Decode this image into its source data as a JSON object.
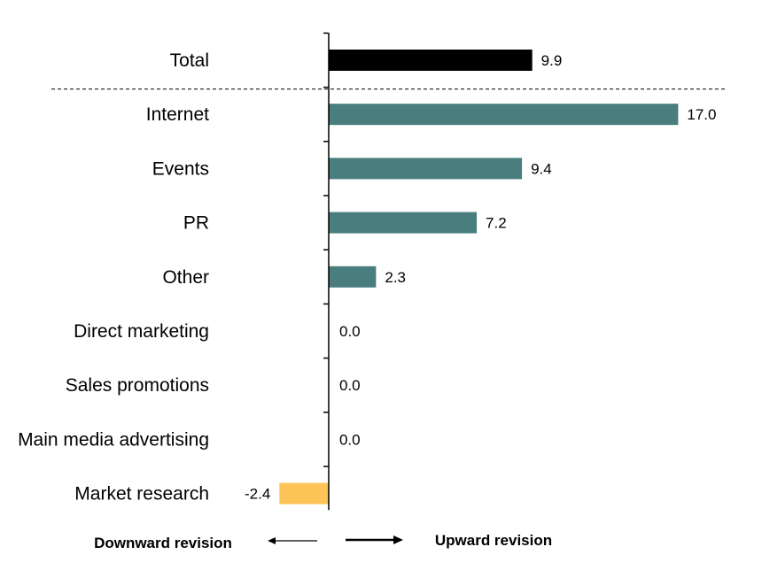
{
  "chart_data": {
    "type": "bar",
    "orientation": "horizontal",
    "total": {
      "category": "Total",
      "value": 9.9,
      "value_label": "9.9"
    },
    "categories": [
      "Internet",
      "Events",
      "PR",
      "Other",
      "Direct marketing",
      "Sales promotions",
      "Main media advertising",
      "Market research"
    ],
    "values": [
      17.0,
      9.4,
      7.2,
      2.3,
      0.0,
      0.0,
      0.0,
      -2.4
    ],
    "value_labels": [
      "17.0",
      "9.4",
      "7.2",
      "2.3",
      "0.0",
      "0.0",
      "0.0",
      "-2.4"
    ],
    "xlim": [
      -3.5,
      19.5
    ],
    "colors": {
      "total": "#000000",
      "positive": "#4a7d7d",
      "negative": "#fcc457"
    },
    "annotations": {
      "downward": "Downward revision",
      "upward": "Upward revision"
    }
  }
}
